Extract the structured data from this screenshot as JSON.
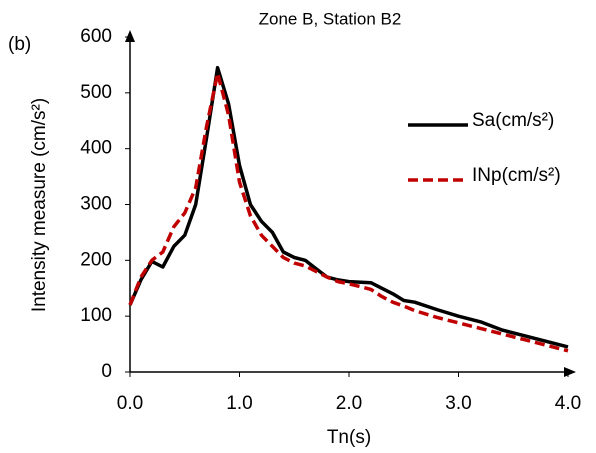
{
  "chart_data": {
    "type": "line",
    "title": "Zone B, Station B2",
    "panel_label": "(b)",
    "x_label": "Tn(s)",
    "y_label": "Intensity measure (cm/s²)",
    "x": [
      0,
      0.1,
      0.2,
      0.3,
      0.4,
      0.5,
      0.6,
      0.7,
      0.8,
      0.9,
      1.0,
      1.1,
      1.2,
      1.3,
      1.4,
      1.5,
      1.6,
      1.7,
      1.8,
      1.9,
      2.0,
      2.2,
      2.3,
      2.4,
      2.5,
      2.6,
      2.8,
      3.0,
      3.2,
      3.4,
      3.6,
      3.8,
      4.0
    ],
    "series": [
      {
        "name": "Sa(cm/s²)",
        "color": "#000000",
        "dashed": false,
        "values": [
          120,
          165,
          198,
          188,
          225,
          245,
          300,
          420,
          545,
          480,
          370,
          300,
          270,
          250,
          215,
          205,
          200,
          185,
          170,
          165,
          162,
          160,
          150,
          140,
          128,
          125,
          112,
          100,
          90,
          75,
          65,
          55,
          45
        ]
      },
      {
        "name": "INp(cm/s²)",
        "color": "#c00000",
        "dashed": true,
        "values": [
          120,
          170,
          200,
          215,
          260,
          285,
          330,
          440,
          535,
          460,
          340,
          280,
          245,
          225,
          205,
          195,
          190,
          180,
          170,
          162,
          158,
          148,
          135,
          125,
          118,
          110,
          98,
          88,
          78,
          68,
          58,
          48,
          38
        ]
      }
    ],
    "xlim": [
      0,
      4
    ],
    "xticks": [
      {
        "value": 0,
        "label": "0.0"
      },
      {
        "value": 1,
        "label": "1.0"
      },
      {
        "value": 2,
        "label": "2.0"
      },
      {
        "value": 3,
        "label": "3.0"
      },
      {
        "value": 4,
        "label": "4.0"
      }
    ],
    "ylim": [
      0,
      600
    ],
    "yticks": [
      0,
      100,
      200,
      300,
      400,
      500,
      600
    ],
    "grid": false
  }
}
